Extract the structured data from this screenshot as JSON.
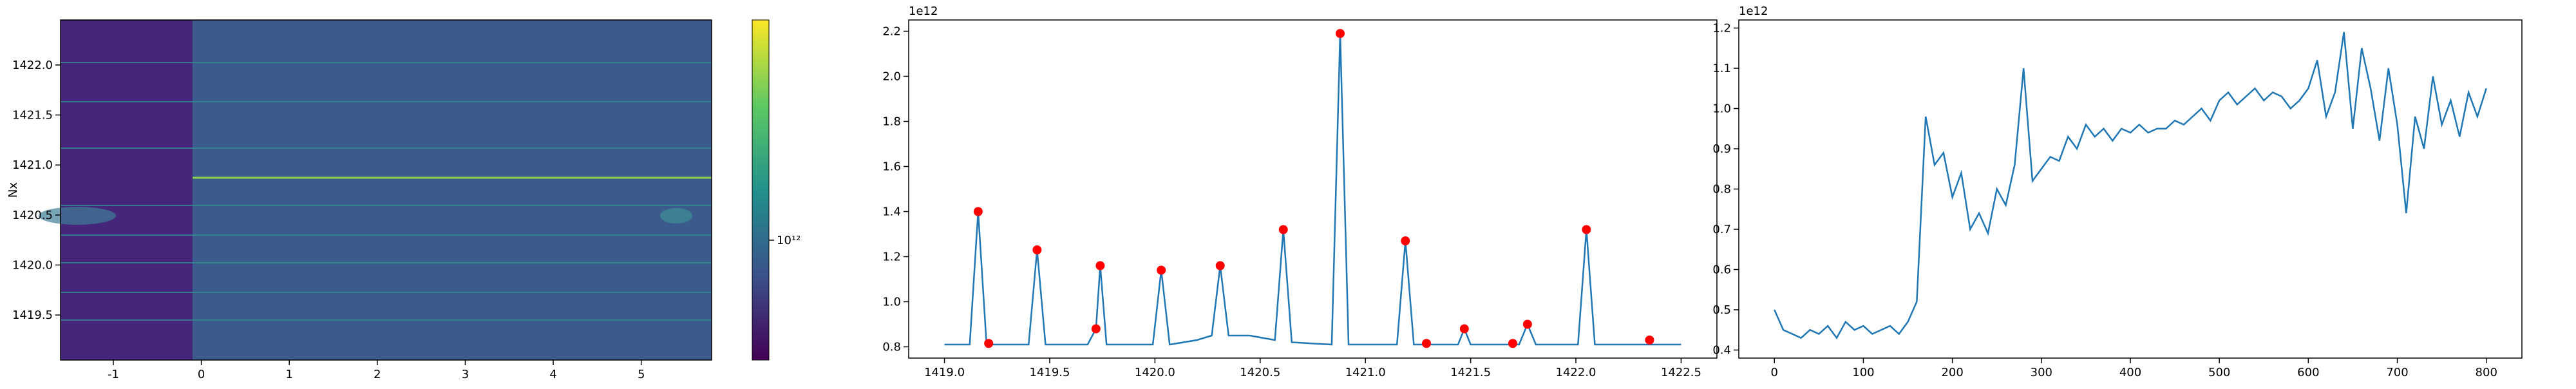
{
  "chart_data": [
    {
      "type": "heatmap",
      "ylabel": "Nx",
      "xlim": [
        -1.6,
        5.8
      ],
      "ylim": [
        1419.05,
        1422.45
      ],
      "xticks": [
        -1,
        0,
        1,
        2,
        3,
        4,
        5
      ],
      "yticks": [
        1419.5,
        {
          "value": 1420,
          "label": "1420.0"
        },
        1420.5,
        {
          "value": 1421,
          "label": "1421.0"
        },
        1421.5,
        {
          "value": 1422,
          "label": "1422.0"
        }
      ],
      "clim": [
        550000000000,
        3000000000000
      ],
      "cscale": "log",
      "colorbar_ticks": [
        {
          "value": 1000000000000,
          "label": "10¹²"
        }
      ]
    },
    {
      "type": "line",
      "offset_label": "1e12",
      "xlim": [
        1418.83,
        1422.67
      ],
      "ylim": [
        0.75,
        2.25
      ],
      "xticks": [
        {
          "value": 1419,
          "label": "1419.0"
        },
        1419.5,
        {
          "value": 1420,
          "label": "1420.0"
        },
        1420.5,
        {
          "value": 1421,
          "label": "1421.0"
        },
        1421.5,
        {
          "value": 1422,
          "label": "1422.0"
        },
        1422.5
      ],
      "yticks": [
        0.8,
        {
          "value": 1,
          "label": "1.0"
        },
        1.2,
        1.4,
        1.6,
        1.8,
        {
          "value": 2,
          "label": "2.0"
        },
        2.2
      ],
      "series": [
        {
          "marker": "line",
          "color": "#1f77b4",
          "x": [
            1419.0,
            1419.12,
            1419.16,
            1419.2,
            1419.4,
            1419.44,
            1419.48,
            1419.68,
            1419.72,
            1419.74,
            1419.77,
            1419.99,
            1420.03,
            1420.07,
            1420.2,
            1420.27,
            1420.31,
            1420.35,
            1420.45,
            1420.57,
            1420.61,
            1420.65,
            1420.84,
            1420.88,
            1420.92,
            1421.15,
            1421.19,
            1421.23,
            1421.44,
            1421.47,
            1421.5,
            1421.73,
            1421.77,
            1421.81,
            1422.01,
            1422.05,
            1422.09,
            1422.5
          ],
          "values": [
            0.81,
            0.81,
            1.4,
            0.81,
            0.81,
            1.23,
            0.81,
            0.81,
            0.88,
            1.16,
            0.81,
            0.81,
            1.14,
            0.81,
            0.83,
            0.85,
            1.16,
            0.85,
            0.85,
            0.83,
            1.32,
            0.82,
            0.81,
            2.19,
            0.81,
            0.81,
            1.27,
            0.81,
            0.81,
            0.88,
            0.81,
            0.81,
            0.9,
            0.81,
            0.81,
            1.32,
            0.81,
            0.81
          ]
        },
        {
          "marker": "dot",
          "color": "#ff0000",
          "x": [
            1419.16,
            1419.21,
            1419.44,
            1419.72,
            1419.74,
            1420.03,
            1420.31,
            1420.61,
            1420.88,
            1421.19,
            1421.29,
            1421.47,
            1421.7,
            1421.77,
            1422.05,
            1422.35
          ],
          "values": [
            1.4,
            0.815,
            1.23,
            0.88,
            1.16,
            1.14,
            1.16,
            1.32,
            2.19,
            1.27,
            0.815,
            0.88,
            0.815,
            0.9,
            1.32,
            0.83
          ]
        }
      ]
    },
    {
      "type": "line",
      "offset_label": "1e12",
      "xlim": [
        -40,
        840
      ],
      "ylim": [
        0.38,
        1.22
      ],
      "xticks": [
        0,
        100,
        200,
        300,
        400,
        500,
        600,
        700,
        800
      ],
      "yticks": [
        0.4,
        0.5,
        0.6,
        0.7,
        0.8,
        0.9,
        {
          "value": 1,
          "label": "1.0"
        },
        1.1,
        1.2
      ],
      "series": [
        {
          "marker": "line",
          "color": "#1f77b4",
          "x": [
            0,
            10,
            20,
            30,
            40,
            50,
            60,
            70,
            80,
            90,
            100,
            110,
            120,
            130,
            140,
            150,
            160,
            170,
            180,
            190,
            200,
            210,
            220,
            230,
            240,
            250,
            260,
            270,
            280,
            290,
            300,
            310,
            320,
            330,
            340,
            350,
            360,
            370,
            380,
            390,
            400,
            410,
            420,
            430,
            440,
            450,
            460,
            470,
            480,
            490,
            500,
            510,
            520,
            530,
            540,
            550,
            560,
            570,
            580,
            590,
            600,
            610,
            620,
            630,
            640,
            650,
            660,
            670,
            680,
            690,
            700,
            710,
            720,
            730,
            740,
            750,
            760,
            770,
            780,
            790,
            800
          ],
          "values": [
            0.5,
            0.45,
            0.44,
            0.43,
            0.45,
            0.44,
            0.46,
            0.43,
            0.47,
            0.45,
            0.46,
            0.44,
            0.45,
            0.46,
            0.44,
            0.47,
            0.52,
            0.98,
            0.86,
            0.89,
            0.78,
            0.84,
            0.7,
            0.74,
            0.69,
            0.8,
            0.76,
            0.86,
            1.1,
            0.82,
            0.85,
            0.88,
            0.87,
            0.93,
            0.9,
            0.96,
            0.93,
            0.95,
            0.92,
            0.95,
            0.94,
            0.96,
            0.94,
            0.95,
            0.95,
            0.97,
            0.96,
            0.98,
            1.0,
            0.97,
            1.02,
            1.04,
            1.01,
            1.03,
            1.05,
            1.02,
            1.04,
            1.03,
            1.0,
            1.02,
            1.05,
            1.12,
            0.98,
            1.04,
            1.19,
            0.95,
            1.15,
            1.05,
            0.92,
            1.1,
            0.96,
            0.74,
            0.98,
            0.9,
            1.08,
            0.96,
            1.02,
            0.93,
            1.04,
            0.98,
            1.05
          ]
        }
      ]
    }
  ]
}
